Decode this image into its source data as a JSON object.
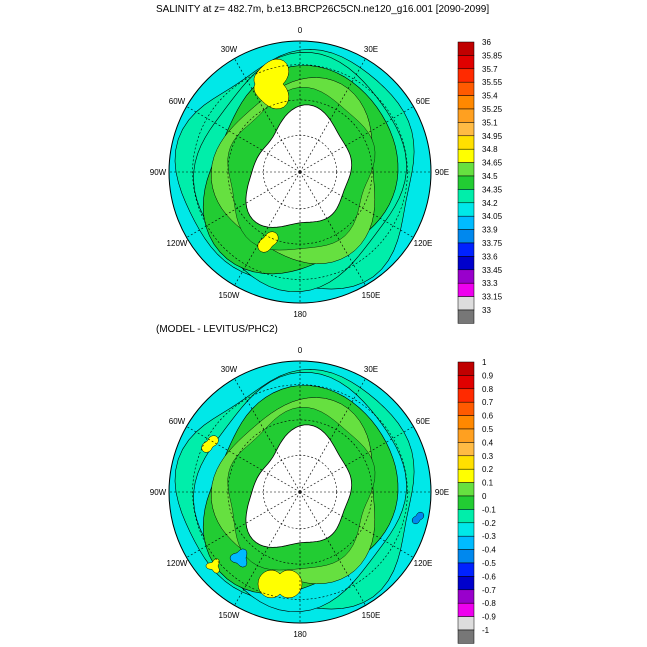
{
  "chart_data": [
    {
      "type": "heatmap",
      "projection": "south-polar-stereographic",
      "title": "SALINITY at z= 482.7m, b.e13.BRCP26C5CN.ne120_g16.001 [2090-2099]",
      "lon_labels": [
        "0",
        "30E",
        "60E",
        "90E",
        "120E",
        "150E",
        "180",
        "150W",
        "120W",
        "90W",
        "60W",
        "30W"
      ],
      "colorbar_levels": [
        "36",
        "35.85",
        "35.7",
        "35.55",
        "35.4",
        "35.25",
        "35.1",
        "34.95",
        "34.8",
        "34.65",
        "34.5",
        "34.35",
        "34.2",
        "34.05",
        "33.9",
        "33.75",
        "33.6",
        "33.45",
        "33.3",
        "33.15",
        "33"
      ],
      "colorbar_colors": [
        "#c00000",
        "#e00000",
        "#ff2a00",
        "#ff5a00",
        "#ff8800",
        "#ffa020",
        "#ffbb44",
        "#ffe000",
        "#ffff00",
        "#66e040",
        "#22cc33",
        "#00eeaa",
        "#00e8e8",
        "#00bbff",
        "#0088ee",
        "#0022ff",
        "#0000cc",
        "#9900cc",
        "#ee00ee",
        "#dddddd",
        "#777777"
      ]
    },
    {
      "type": "heatmap",
      "projection": "south-polar-stereographic",
      "title": "(MODEL - LEVITUS/PHC2)",
      "lon_labels": [
        "0",
        "30E",
        "60E",
        "90E",
        "120E",
        "150E",
        "180",
        "150W",
        "120W",
        "90W",
        "60W",
        "30W"
      ],
      "colorbar_levels": [
        "1",
        "0.9",
        "0.8",
        "0.7",
        "0.6",
        "0.5",
        "0.4",
        "0.3",
        "0.2",
        "0.1",
        "0",
        "-0.1",
        "-0.2",
        "-0.3",
        "-0.4",
        "-0.5",
        "-0.6",
        "-0.7",
        "-0.8",
        "-0.9",
        "-1"
      ],
      "colorbar_colors": [
        "#c00000",
        "#e00000",
        "#ff2a00",
        "#ff5a00",
        "#ff8800",
        "#ffa020",
        "#ffbb44",
        "#ffe000",
        "#ffff00",
        "#66e040",
        "#22cc33",
        "#00eeaa",
        "#00e8e8",
        "#00bbff",
        "#0088ee",
        "#0022ff",
        "#0000cc",
        "#9900cc",
        "#ee00ee",
        "#dddddd",
        "#777777"
      ]
    }
  ]
}
